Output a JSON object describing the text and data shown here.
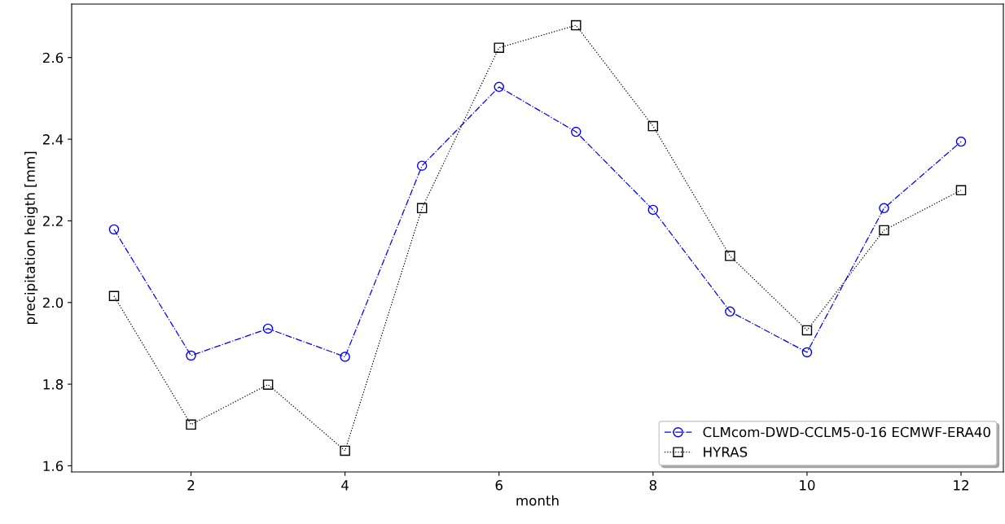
{
  "chart_data": {
    "type": "line",
    "xlabel": "month",
    "ylabel": "precipitation heigth [mm]",
    "x": [
      1,
      2,
      3,
      4,
      5,
      6,
      7,
      8,
      9,
      10,
      11,
      12
    ],
    "series": [
      {
        "name": "CLMcom-DWD-CCLM5-0-16 ECMWF-ERA40",
        "color": "#0000ff",
        "marker": "circle",
        "line_style": "dashdot",
        "values": [
          2.179,
          1.87,
          1.936,
          1.867,
          2.335,
          2.528,
          2.418,
          2.227,
          1.978,
          1.878,
          2.231,
          2.394
        ]
      },
      {
        "name": "HYRAS",
        "color": "#000000",
        "marker": "square",
        "line_style": "dotted",
        "values": [
          2.016,
          1.701,
          1.799,
          1.637,
          2.231,
          2.624,
          2.679,
          2.432,
          2.114,
          1.932,
          2.177,
          2.275
        ]
      }
    ],
    "xlim": [
      0.45,
      12.55
    ],
    "ylim": [
      1.585,
      2.731
    ],
    "xticks": [
      2,
      4,
      6,
      8,
      10,
      12
    ],
    "yticks": [
      {
        "value": 1.6,
        "label": "1.6"
      },
      {
        "value": 1.8,
        "label": "1.8"
      },
      {
        "value": 2.0,
        "label": "2.0"
      },
      {
        "value": 2.2,
        "label": "2.2"
      },
      {
        "value": 2.4,
        "label": "2.4"
      },
      {
        "value": 2.6,
        "label": "2.6"
      }
    ],
    "grid": false,
    "legend": "bottom right"
  }
}
